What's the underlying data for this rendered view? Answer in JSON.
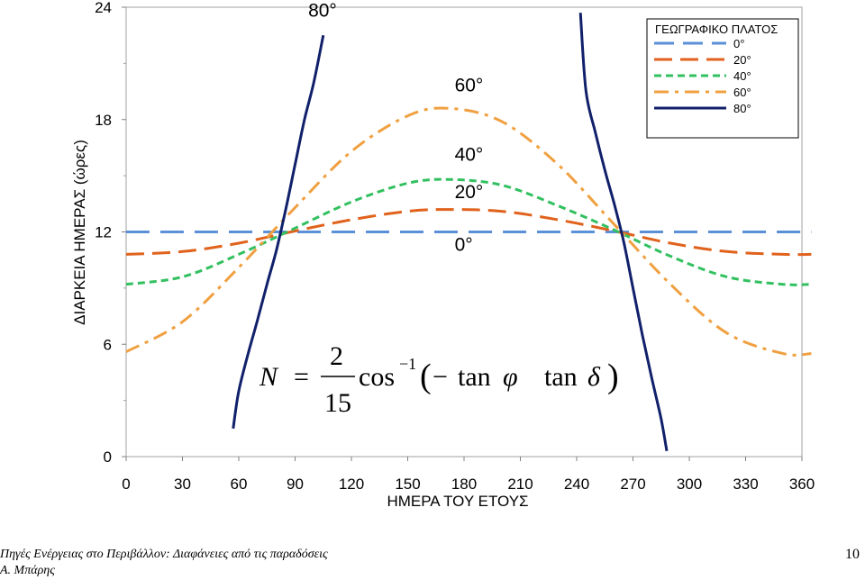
{
  "chart_data": {
    "type": "line",
    "xlabel": "ΗΜΕΡΑ ΤΟΥ ΕΤΟΥΣ",
    "ylabel": "ΔΙΑΡΚΕΙΑ ΗΜΕΡΑΣ (ώρες)",
    "xlim": [
      0,
      360
    ],
    "ylim": [
      0,
      24
    ],
    "x_ticks": [
      0,
      30,
      60,
      90,
      120,
      150,
      180,
      210,
      240,
      270,
      300,
      330,
      360
    ],
    "y_ticks": [
      0,
      6,
      12,
      18,
      24
    ],
    "legend": {
      "title": "ΓΕΩΓΡΑΦΙΚΟ ΠΛΑΤΟΣ",
      "placement": "top-right",
      "entries": [
        "0°",
        "20°",
        "40°",
        "60°",
        "80°"
      ]
    },
    "series": [
      {
        "name": "0°",
        "color": "#5b8fd8",
        "dash": "dashed-long",
        "x": [
          0,
          90,
          180,
          270,
          365
        ],
        "y": [
          12,
          12,
          12,
          12,
          12
        ]
      },
      {
        "name": "20°",
        "color": "#e0621c",
        "dash": "dashed",
        "x": [
          0,
          30,
          60,
          90,
          120,
          150,
          172,
          200,
          230,
          260,
          290,
          320,
          350,
          365
        ],
        "y": [
          10.8,
          10.95,
          11.4,
          12.05,
          12.65,
          13.1,
          13.2,
          13.1,
          12.65,
          12.05,
          11.4,
          10.95,
          10.8,
          10.8
        ]
      },
      {
        "name": "40°",
        "color": "#33c060",
        "dash": "dashed-short",
        "x": [
          0,
          30,
          60,
          90,
          120,
          150,
          172,
          200,
          230,
          260,
          290,
          320,
          350,
          365
        ],
        "y": [
          9.2,
          9.6,
          10.8,
          12.2,
          13.6,
          14.6,
          14.8,
          14.5,
          13.4,
          12.1,
          10.7,
          9.6,
          9.2,
          9.2
        ]
      },
      {
        "name": "60°",
        "color": "#f0a040",
        "dash": "dash-dot",
        "x": [
          0,
          30,
          60,
          90,
          120,
          150,
          172,
          200,
          230,
          260,
          290,
          320,
          350,
          365
        ],
        "y": [
          5.6,
          7.2,
          10.1,
          13.3,
          16.3,
          18.2,
          18.6,
          17.9,
          15.6,
          12.4,
          9.2,
          6.6,
          5.5,
          5.5
        ]
      },
      {
        "name": "80°",
        "color": "#10206a",
        "dash": "solid",
        "segments": [
          {
            "x": [
              57,
              60,
              65,
              70,
              75,
              80,
              85,
              90,
              95,
              100,
              105
            ],
            "y": [
              1.5,
              3.5,
              5.5,
              7.3,
              9.2,
              11.0,
              13.2,
              15.6,
              18.0,
              20.0,
              22.5
            ]
          },
          {
            "x": [
              242,
              245,
              250,
              255,
              260,
              265,
              270,
              275,
              280,
              285,
              288
            ],
            "y": [
              23.7,
              19.5,
              17.3,
              15.3,
              13.5,
              11.5,
              9.0,
              6.5,
              4.2,
              2.0,
              0.3
            ]
          }
        ]
      }
    ],
    "annotations": [
      {
        "text": "80°",
        "x": 97,
        "y": 23.5
      },
      {
        "text": "60°",
        "x": 175,
        "y": 19.5
      },
      {
        "text": "40°",
        "x": 175,
        "y": 15.8
      },
      {
        "text": "20°",
        "x": 175,
        "y": 13.8
      },
      {
        "text": "0°",
        "x": 175,
        "y": 11.0
      }
    ],
    "formula": {
      "lhs": "N",
      "equals": "=",
      "numerator": "2",
      "denominator": "15",
      "func": "cos",
      "exponent": "−1",
      "open": "(",
      "minus": "−",
      "tan1": "tan",
      "phi": "φ",
      "tan2": "tan",
      "delta": "δ",
      "close": ")"
    }
  },
  "footer": {
    "source_line1": "Πηγές Ενέργειας στο Περιβάλλον: Διαφάνειες από τις παραδόσεις",
    "source_line2": "Α. Μπάρης",
    "page_number": "10"
  }
}
